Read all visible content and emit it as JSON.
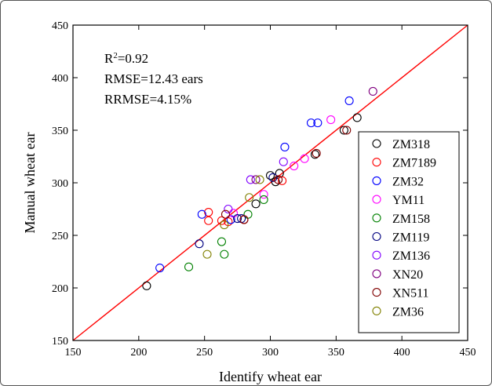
{
  "chart_data": {
    "type": "scatter",
    "title": "",
    "xlabel": "Identify  wheat ear",
    "ylabel": "Manual wheat ear",
    "xlim": [
      150,
      450
    ],
    "ylim": [
      150,
      450
    ],
    "xticks": [
      150,
      200,
      250,
      300,
      350,
      400,
      450
    ],
    "yticks": [
      150,
      200,
      250,
      300,
      350,
      400,
      450
    ],
    "grid": false,
    "legend_position": "right",
    "reference_line": {
      "x": [
        150,
        450
      ],
      "y": [
        150,
        450
      ],
      "color": "#ff0000"
    },
    "annotations": {
      "r2_prefix": "R",
      "r2_exp": "2",
      "r2_value": "=0.92",
      "rmse": "RMSE=12.43 ears",
      "rrmse": "RRMSE=4.15%"
    },
    "series": [
      {
        "name": "ZM318",
        "color": "#000000",
        "points": [
          [
            206,
            202
          ],
          [
            289,
            280
          ],
          [
            300,
            307
          ],
          [
            304,
            301
          ],
          [
            307,
            309
          ],
          [
            334,
            327
          ],
          [
            356,
            350
          ],
          [
            366,
            362
          ]
        ]
      },
      {
        "name": "ZM7189",
        "color": "#ff0000",
        "points": [
          [
            253,
            272
          ],
          [
            253,
            264
          ],
          [
            263,
            264
          ],
          [
            268,
            263
          ],
          [
            280,
            265
          ],
          [
            309,
            302
          ]
        ]
      },
      {
        "name": "ZM32",
        "color": "#0000ff",
        "points": [
          [
            216,
            219
          ],
          [
            248,
            270
          ],
          [
            270,
            265
          ],
          [
            311,
            334
          ],
          [
            331,
            357
          ],
          [
            336,
            357
          ],
          [
            360,
            378
          ]
        ]
      },
      {
        "name": "YM11",
        "color": "#ff00ff",
        "points": [
          [
            272,
            271
          ],
          [
            295,
            289
          ],
          [
            318,
            316
          ],
          [
            326,
            323
          ],
          [
            346,
            360
          ]
        ]
      },
      {
        "name": "ZM158",
        "color": "#008000",
        "points": [
          [
            238,
            220
          ],
          [
            263,
            244
          ],
          [
            265,
            232
          ],
          [
            283,
            270
          ],
          [
            295,
            284
          ]
        ]
      },
      {
        "name": "ZM119",
        "color": "#000080",
        "points": [
          [
            246,
            242
          ],
          [
            275,
            266
          ],
          [
            278,
            266
          ],
          [
            302,
            305
          ]
        ]
      },
      {
        "name": "ZM136",
        "color": "#8000ff",
        "points": [
          [
            268,
            275
          ],
          [
            285,
            303
          ],
          [
            310,
            320
          ]
        ]
      },
      {
        "name": "XN20",
        "color": "#800080",
        "points": [
          [
            289,
            303
          ],
          [
            378,
            387
          ]
        ]
      },
      {
        "name": "XN511",
        "color": "#800000",
        "points": [
          [
            266,
            270
          ],
          [
            280,
            265
          ],
          [
            306,
            303
          ],
          [
            335,
            328
          ],
          [
            358,
            350
          ]
        ]
      },
      {
        "name": "ZM36",
        "color": "#808000",
        "points": [
          [
            252,
            232
          ],
          [
            265,
            260
          ],
          [
            284,
            286
          ],
          [
            292,
            303
          ]
        ]
      }
    ]
  }
}
